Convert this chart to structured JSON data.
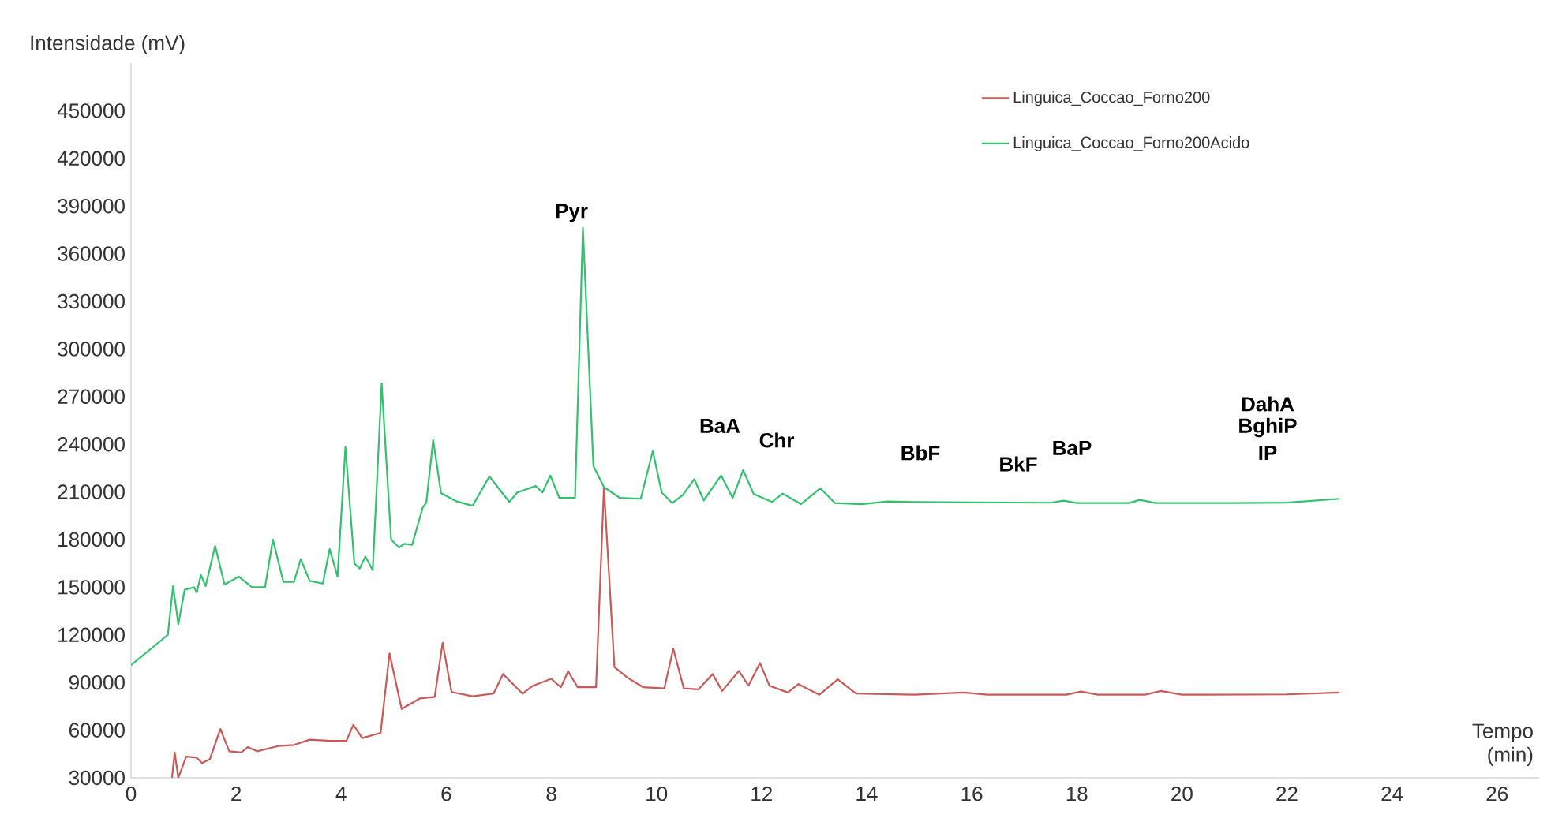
{
  "chart_data": {
    "type": "line",
    "xlabel": "Tempo (min)",
    "ylabel": "Intensidade (mV)",
    "xlim": [
      0,
      26.8
    ],
    "ylim": [
      30000,
      480000
    ],
    "xticks": [
      0,
      2,
      4,
      6,
      8,
      10,
      12,
      14,
      16,
      18,
      20,
      22,
      24,
      26
    ],
    "yticks": [
      30000,
      60000,
      90000,
      120000,
      150000,
      180000,
      210000,
      240000,
      270000,
      300000,
      330000,
      360000,
      390000,
      420000,
      450000
    ],
    "legend": "top right",
    "annotations": [
      "Pyr",
      "BaA",
      "Chr",
      "BbF",
      "BkF",
      "BaP",
      "DahA",
      "BghiP",
      "IP"
    ],
    "series": [
      {
        "name": "Linguica_Coccao_Forno200",
        "color": "#c85a58",
        "x": [
          0.78,
          0.83,
          0.9,
          1.05,
          1.25,
          1.35,
          1.5,
          1.7,
          1.87,
          2.1,
          2.22,
          2.4,
          2.8,
          3.1,
          3.4,
          3.8,
          4.1,
          4.23,
          4.4,
          4.75,
          4.92,
          5.15,
          5.5,
          5.78,
          5.93,
          6.1,
          6.5,
          6.9,
          7.08,
          7.45,
          7.65,
          8.0,
          8.18,
          8.32,
          8.5,
          8.85,
          9.0,
          9.2,
          9.45,
          9.75,
          10.15,
          10.32,
          10.52,
          10.8,
          11.07,
          11.25,
          11.57,
          11.75,
          11.97,
          12.15,
          12.5,
          12.7,
          13.1,
          13.45,
          13.8,
          14.9,
          15.85,
          16.3,
          17.8,
          18.08,
          18.4,
          19.3,
          19.6,
          20.0,
          22.0,
          23.0
        ],
        "values": [
          30000,
          46000,
          30000,
          43300,
          42700,
          39300,
          41700,
          60700,
          46700,
          46000,
          49300,
          46700,
          50000,
          50700,
          54000,
          53300,
          53300,
          63300,
          55000,
          58300,
          108300,
          73300,
          80000,
          81000,
          115000,
          84000,
          81300,
          83000,
          95300,
          83000,
          88000,
          92300,
          87000,
          97000,
          87000,
          87000,
          213000,
          99700,
          93000,
          87000,
          86300,
          111300,
          86300,
          85700,
          95300,
          84700,
          97300,
          88000,
          102300,
          88000,
          83700,
          89000,
          82300,
          92000,
          83000,
          82300,
          83700,
          82300,
          82300,
          84300,
          82300,
          82300,
          84700,
          82300,
          82500,
          83700
        ]
      },
      {
        "name": "Linguica_Coccao_Forno200Acido",
        "color": "#33c16f",
        "x": [
          0,
          0.7,
          0.8,
          0.9,
          1.02,
          1.2,
          1.25,
          1.33,
          1.42,
          1.6,
          1.78,
          2.05,
          2.3,
          2.55,
          2.7,
          2.9,
          3.1,
          3.23,
          3.4,
          3.65,
          3.78,
          3.93,
          4.08,
          4.25,
          4.35,
          4.46,
          4.6,
          4.77,
          4.95,
          5.1,
          5.2,
          5.35,
          5.55,
          5.62,
          5.75,
          5.9,
          6.2,
          6.5,
          6.82,
          7.2,
          7.35,
          7.7,
          7.83,
          7.98,
          8.15,
          8.45,
          8.6,
          8.8,
          9.0,
          9.3,
          9.7,
          9.93,
          10.1,
          10.3,
          10.5,
          10.72,
          10.9,
          11.23,
          11.45,
          11.65,
          11.85,
          12.2,
          12.4,
          12.75,
          13.12,
          13.4,
          13.9,
          14.4,
          14.9,
          15.5,
          17.5,
          17.75,
          18.0,
          19.0,
          19.2,
          19.5,
          21.0,
          22.0,
          23.0
        ],
        "values": [
          101000,
          120000,
          150700,
          126700,
          148300,
          150000,
          146700,
          157700,
          150700,
          176000,
          151700,
          156700,
          150000,
          150000,
          180000,
          153300,
          153300,
          167700,
          154000,
          152300,
          174000,
          156700,
          238300,
          165000,
          161700,
          169300,
          160700,
          278300,
          180000,
          175000,
          177300,
          176700,
          200000,
          203300,
          242700,
          209300,
          204000,
          201300,
          219700,
          203700,
          209700,
          213700,
          209700,
          220300,
          206300,
          206300,
          376300,
          226300,
          213000,
          206300,
          205700,
          235700,
          209700,
          203000,
          208000,
          218000,
          204700,
          220300,
          206300,
          223700,
          208700,
          203700,
          209000,
          202300,
          212300,
          203000,
          202300,
          204000,
          203700,
          203500,
          203200,
          204500,
          203000,
          203000,
          205000,
          203000,
          203000,
          203300,
          205700
        ]
      }
    ]
  }
}
